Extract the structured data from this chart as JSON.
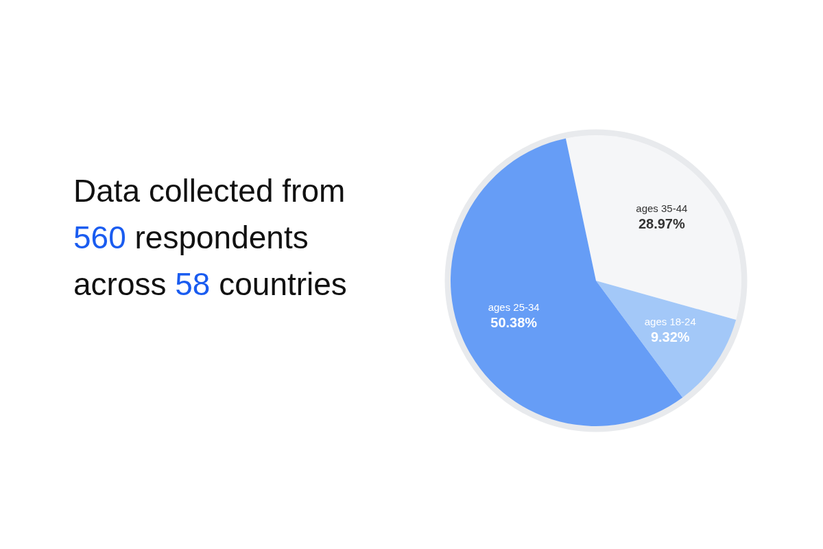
{
  "chart_data": {
    "type": "pie",
    "title": "Data collected from 560 respondents across 58 countries",
    "categories": [
      "ages 35-44",
      "ages 18-24",
      "ages 25-34"
    ],
    "values": [
      28.97,
      9.32,
      50.38
    ],
    "colors": [
      "#f5f6f8",
      "#a3c8f8",
      "#669df6"
    ],
    "value_labels": [
      "28.97%",
      "9.32%",
      "50.38%"
    ]
  }
}
